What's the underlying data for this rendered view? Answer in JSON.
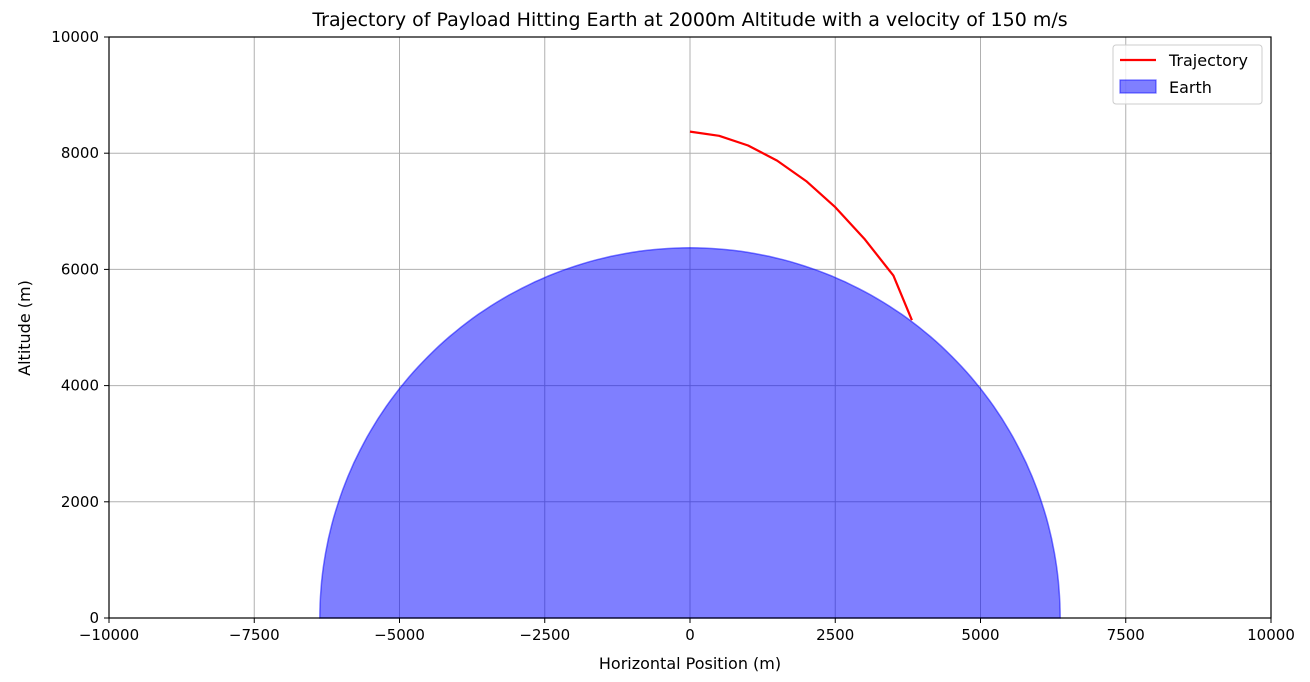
{
  "chart_data": {
    "type": "line",
    "title": "Trajectory of Payload Hitting Earth at 2000m Altitude with a velocity of 150 m/s",
    "xlabel": "Horizontal Position (m)",
    "ylabel": "Altitude (m)",
    "xlim": [
      -10000,
      10000
    ],
    "ylim": [
      0,
      10000
    ],
    "x_ticks": [
      -10000,
      -7500,
      -5000,
      -2500,
      0,
      2500,
      5000,
      7500,
      10000
    ],
    "x_tick_labels": [
      "−10000",
      "−7500",
      "−5000",
      "−2500",
      "0",
      "2500",
      "5000",
      "7500",
      "10000"
    ],
    "y_ticks": [
      0,
      2000,
      4000,
      6000,
      8000,
      10000
    ],
    "y_tick_labels": [
      "0",
      "2000",
      "4000",
      "6000",
      "8000",
      "10000"
    ],
    "grid": true,
    "legend_position": "top-right",
    "series": [
      {
        "name": "Trajectory",
        "kind": "line",
        "color": "#ff0000",
        "x": [
          0,
          500,
          1000,
          1500,
          2000,
          2500,
          3000,
          3500,
          3820
        ],
        "y": [
          8371,
          8299,
          8133,
          7873,
          7519,
          7071,
          6529,
          5893,
          5126
        ]
      },
      {
        "name": "Earth",
        "kind": "area",
        "color": "#0000ff",
        "fill_alpha": 0.5,
        "radius": 6371,
        "x": [
          -6371,
          -6232,
          -5954,
          -5000,
          -4000,
          -3000,
          -2000,
          -1000,
          0,
          1000,
          2000,
          3000,
          4000,
          5000,
          5954,
          6232,
          6371
        ],
        "y": [
          0,
          1300,
          2000,
          3948,
          4959,
          5621,
          6049,
          6292,
          6371,
          6292,
          6049,
          5621,
          4959,
          3948,
          2000,
          1300,
          0
        ]
      }
    ]
  }
}
